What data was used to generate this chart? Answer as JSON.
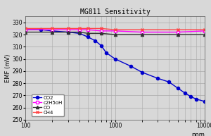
{
  "title": "MG811 Sensitivity",
  "xlabel": "ppm",
  "ylabel": "EMF (mV)",
  "xlim": [
    100,
    10000
  ],
  "ylim": [
    250,
    335
  ],
  "yticks": [
    250,
    260,
    270,
    280,
    290,
    300,
    310,
    320,
    330
  ],
  "series": {
    "CO2": {
      "x": [
        100,
        150,
        200,
        300,
        400,
        500,
        600,
        700,
        800,
        1000,
        1500,
        2000,
        3000,
        4000,
        5000,
        6000,
        7000,
        8000,
        10000
      ],
      "y": [
        324,
        324,
        323,
        322,
        321,
        318,
        315,
        311,
        305,
        300,
        294,
        289,
        284,
        281,
        276,
        272,
        269,
        267,
        265
      ],
      "color": "#0000cc",
      "marker": "o",
      "markerfacecolor": "#0000cc",
      "markeredgecolor": "#0000cc",
      "linewidth": 1.0,
      "markersize": 3
    },
    "c2H5oH": {
      "x": [
        100,
        200,
        300,
        400,
        500,
        700,
        1000,
        2000,
        5000,
        10000
      ],
      "y": [
        324,
        324,
        324,
        324,
        324,
        323,
        323,
        322,
        322,
        323
      ],
      "color": "#ff00ff",
      "marker": "s",
      "markerfacecolor": "white",
      "markeredgecolor": "#ff00ff",
      "linewidth": 1.0,
      "markersize": 3
    },
    "CO": {
      "x": [
        100,
        200,
        300,
        400,
        500,
        700,
        1000,
        2000,
        5000,
        10000
      ],
      "y": [
        322,
        322,
        322,
        322,
        321,
        321,
        320,
        320,
        320,
        320
      ],
      "color": "#333333",
      "marker": "^",
      "markerfacecolor": "#333333",
      "markeredgecolor": "#333333",
      "linewidth": 1.0,
      "markersize": 3
    },
    "CH4": {
      "x": [
        100,
        200,
        300,
        400,
        500,
        700,
        1000,
        2000,
        5000,
        10000
      ],
      "y": [
        325,
        325,
        325,
        325,
        325,
        325,
        324,
        324,
        324,
        324
      ],
      "color": "#ff4444",
      "marker": "x",
      "markerfacecolor": "#ff4444",
      "markeredgecolor": "#ff4444",
      "linewidth": 1.0,
      "markersize": 3
    }
  },
  "grid_color": "#aaaaaa",
  "bg_color": "#d8d8d8",
  "title_fontsize": 7,
  "axis_fontsize": 6,
  "tick_fontsize": 5.5
}
